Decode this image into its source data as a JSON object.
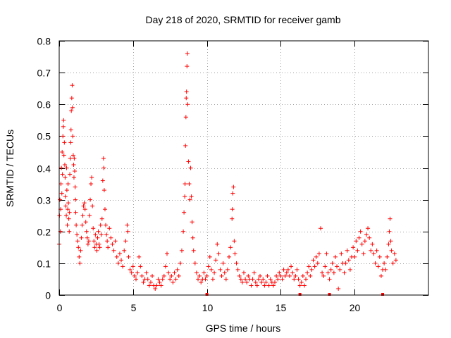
{
  "chart_data": {
    "type": "scatter",
    "title": "Day 218 of 2020, SRMTID for receiver gamb",
    "xlabel": "GPS time / hours",
    "ylabel": "SRMTID / TECUs",
    "xlim": [
      0,
      25
    ],
    "ylim": [
      0,
      0.8
    ],
    "xticks": [
      0,
      5,
      10,
      15,
      20
    ],
    "xtick_labels": [
      "0",
      "5",
      "10",
      "15",
      "20"
    ],
    "yticks": [
      0,
      0.1,
      0.2,
      0.3,
      0.4,
      0.5,
      0.6,
      0.7,
      0.8
    ],
    "ytick_labels": [
      "0",
      "0.1",
      "0.2",
      "0.3",
      "0.4",
      "0.5",
      "0.6",
      "0.7",
      "0.8"
    ],
    "grid": true,
    "marker": "+",
    "color": "#ff0000",
    "series": [
      {
        "name": "SRMTID",
        "points": [
          [
            0.0,
            0.16
          ],
          [
            0.02,
            0.25
          ],
          [
            0.05,
            0.3
          ],
          [
            0.08,
            0.2
          ],
          [
            0.1,
            0.27
          ],
          [
            0.12,
            0.35
          ],
          [
            0.15,
            0.4
          ],
          [
            0.18,
            0.32
          ],
          [
            0.2,
            0.45
          ],
          [
            0.22,
            0.38
          ],
          [
            0.25,
            0.5
          ],
          [
            0.28,
            0.53
          ],
          [
            0.3,
            0.55
          ],
          [
            0.32,
            0.44
          ],
          [
            0.35,
            0.48
          ],
          [
            0.38,
            0.41
          ],
          [
            0.4,
            0.37
          ],
          [
            0.42,
            0.31
          ],
          [
            0.45,
            0.28
          ],
          [
            0.48,
            0.25
          ],
          [
            0.5,
            0.4
          ],
          [
            0.52,
            0.33
          ],
          [
            0.55,
            0.22
          ],
          [
            0.58,
            0.27
          ],
          [
            0.6,
            0.35
          ],
          [
            0.62,
            0.29
          ],
          [
            0.65,
            0.24
          ],
          [
            0.68,
            0.2
          ],
          [
            0.7,
            0.26
          ],
          [
            0.72,
            0.38
          ],
          [
            0.75,
            0.43
          ],
          [
            0.78,
            0.48
          ],
          [
            0.8,
            0.52
          ],
          [
            0.82,
            0.58
          ],
          [
            0.85,
            0.62
          ],
          [
            0.88,
            0.66
          ],
          [
            0.9,
            0.59
          ],
          [
            0.92,
            0.5
          ],
          [
            0.95,
            0.44
          ],
          [
            0.98,
            0.41
          ],
          [
            1.0,
            0.37
          ],
          [
            1.02,
            0.43
          ],
          [
            1.05,
            0.39
          ],
          [
            1.08,
            0.34
          ],
          [
            1.1,
            0.3
          ],
          [
            1.12,
            0.26
          ],
          [
            1.15,
            0.22
          ],
          [
            1.2,
            0.19
          ],
          [
            1.25,
            0.17
          ],
          [
            1.3,
            0.15
          ],
          [
            1.35,
            0.12
          ],
          [
            1.4,
            0.1
          ],
          [
            1.45,
            0.14
          ],
          [
            1.5,
            0.18
          ],
          [
            1.55,
            0.22
          ],
          [
            1.6,
            0.25
          ],
          [
            1.65,
            0.28
          ],
          [
            1.7,
            0.29
          ],
          [
            1.75,
            0.27
          ],
          [
            1.8,
            0.23
          ],
          [
            1.85,
            0.2
          ],
          [
            1.9,
            0.18
          ],
          [
            1.95,
            0.16
          ],
          [
            2.0,
            0.17
          ],
          [
            2.05,
            0.25
          ],
          [
            2.1,
            0.3
          ],
          [
            2.15,
            0.35
          ],
          [
            2.2,
            0.37
          ],
          [
            2.25,
            0.28
          ],
          [
            2.3,
            0.21
          ],
          [
            2.35,
            0.17
          ],
          [
            2.4,
            0.15
          ],
          [
            2.45,
            0.19
          ],
          [
            2.5,
            0.16
          ],
          [
            2.55,
            0.14
          ],
          [
            2.6,
            0.18
          ],
          [
            2.65,
            0.2
          ],
          [
            2.7,
            0.16
          ],
          [
            2.75,
            0.15
          ],
          [
            2.8,
            0.22
          ],
          [
            2.85,
            0.19
          ],
          [
            2.9,
            0.24
          ],
          [
            2.95,
            0.36
          ],
          [
            3.0,
            0.43
          ],
          [
            3.02,
            0.4
          ],
          [
            3.05,
            0.33
          ],
          [
            3.1,
            0.27
          ],
          [
            3.15,
            0.22
          ],
          [
            3.2,
            0.19
          ],
          [
            3.25,
            0.17
          ],
          [
            3.3,
            0.15
          ],
          [
            3.4,
            0.21
          ],
          [
            3.5,
            0.18
          ],
          [
            3.6,
            0.16
          ],
          [
            3.7,
            0.14
          ],
          [
            3.8,
            0.17
          ],
          [
            3.9,
            0.12
          ],
          [
            4.0,
            0.1
          ],
          [
            4.1,
            0.13
          ],
          [
            4.2,
            0.11
          ],
          [
            4.3,
            0.09
          ],
          [
            4.4,
            0.14
          ],
          [
            4.5,
            0.17
          ],
          [
            4.6,
            0.22
          ],
          [
            4.65,
            0.2
          ],
          [
            4.7,
            0.12
          ],
          [
            4.8,
            0.08
          ],
          [
            4.9,
            0.07
          ],
          [
            5.0,
            0.09
          ],
          [
            5.1,
            0.06
          ],
          [
            5.2,
            0.05
          ],
          [
            5.3,
            0.07
          ],
          [
            5.4,
            0.12
          ],
          [
            5.5,
            0.09
          ],
          [
            5.6,
            0.06
          ],
          [
            5.7,
            0.04
          ],
          [
            5.8,
            0.05
          ],
          [
            5.9,
            0.07
          ],
          [
            6.0,
            0.05
          ],
          [
            6.1,
            0.03
          ],
          [
            6.2,
            0.04
          ],
          [
            6.3,
            0.06
          ],
          [
            6.4,
            0.03
          ],
          [
            6.5,
            0.02
          ],
          [
            6.6,
            0.03
          ],
          [
            6.7,
            0.05
          ],
          [
            6.8,
            0.04
          ],
          [
            6.9,
            0.03
          ],
          [
            7.0,
            0.05
          ],
          [
            7.1,
            0.06
          ],
          [
            7.2,
            0.09
          ],
          [
            7.3,
            0.13
          ],
          [
            7.4,
            0.07
          ],
          [
            7.5,
            0.05
          ],
          [
            7.6,
            0.06
          ],
          [
            7.7,
            0.04
          ],
          [
            7.8,
            0.07
          ],
          [
            7.9,
            0.05
          ],
          [
            8.0,
            0.08
          ],
          [
            8.1,
            0.06
          ],
          [
            8.2,
            0.1
          ],
          [
            8.3,
            0.14
          ],
          [
            8.4,
            0.2
          ],
          [
            8.45,
            0.26
          ],
          [
            8.5,
            0.31
          ],
          [
            8.52,
            0.35
          ],
          [
            8.55,
            0.47
          ],
          [
            8.58,
            0.56
          ],
          [
            8.6,
            0.62
          ],
          [
            8.62,
            0.64
          ],
          [
            8.65,
            0.72
          ],
          [
            8.68,
            0.76
          ],
          [
            8.7,
            0.6
          ],
          [
            8.75,
            0.42
          ],
          [
            8.8,
            0.35
          ],
          [
            8.85,
            0.3
          ],
          [
            8.9,
            0.4
          ],
          [
            8.95,
            0.31
          ],
          [
            9.0,
            0.23
          ],
          [
            9.05,
            0.18
          ],
          [
            9.1,
            0.14
          ],
          [
            9.2,
            0.1
          ],
          [
            9.3,
            0.07
          ],
          [
            9.4,
            0.05
          ],
          [
            9.5,
            0.06
          ],
          [
            9.6,
            0.04
          ],
          [
            9.7,
            0.05
          ],
          [
            9.8,
            0.07
          ],
          [
            9.9,
            0.05
          ],
          [
            10.0,
            0.06
          ],
          [
            10.1,
            0.09
          ],
          [
            10.2,
            0.12
          ],
          [
            10.3,
            0.08
          ],
          [
            10.4,
            0.05
          ],
          [
            10.5,
            0.07
          ],
          [
            10.6,
            0.11
          ],
          [
            10.7,
            0.16
          ],
          [
            10.8,
            0.13
          ],
          [
            10.9,
            0.08
          ],
          [
            11.0,
            0.06
          ],
          [
            11.1,
            0.1
          ],
          [
            11.2,
            0.07
          ],
          [
            11.3,
            0.05
          ],
          [
            11.4,
            0.08
          ],
          [
            11.5,
            0.12
          ],
          [
            11.6,
            0.15
          ],
          [
            11.7,
            0.24
          ],
          [
            11.72,
            0.27
          ],
          [
            11.75,
            0.32
          ],
          [
            11.8,
            0.34
          ],
          [
            11.85,
            0.17
          ],
          [
            11.9,
            0.13
          ],
          [
            12.0,
            0.1
          ],
          [
            12.1,
            0.08
          ],
          [
            12.2,
            0.06
          ],
          [
            12.3,
            0.05
          ],
          [
            12.4,
            0.04
          ],
          [
            12.5,
            0.07
          ],
          [
            12.6,
            0.05
          ],
          [
            12.7,
            0.04
          ],
          [
            12.8,
            0.06
          ],
          [
            12.9,
            0.05
          ],
          [
            13.0,
            0.03
          ],
          [
            13.1,
            0.05
          ],
          [
            13.2,
            0.07
          ],
          [
            13.3,
            0.04
          ],
          [
            13.4,
            0.03
          ],
          [
            13.5,
            0.05
          ],
          [
            13.6,
            0.06
          ],
          [
            13.7,
            0.04
          ],
          [
            13.8,
            0.05
          ],
          [
            13.9,
            0.03
          ],
          [
            14.0,
            0.04
          ],
          [
            14.1,
            0.06
          ],
          [
            14.2,
            0.03
          ],
          [
            14.3,
            0.05
          ],
          [
            14.4,
            0.04
          ],
          [
            14.5,
            0.03
          ],
          [
            14.6,
            0.04
          ],
          [
            14.7,
            0.06
          ],
          [
            14.8,
            0.05
          ],
          [
            14.9,
            0.07
          ],
          [
            15.0,
            0.06
          ],
          [
            15.1,
            0.05
          ],
          [
            15.2,
            0.08
          ],
          [
            15.3,
            0.06
          ],
          [
            15.4,
            0.07
          ],
          [
            15.5,
            0.08
          ],
          [
            15.6,
            0.06
          ],
          [
            15.7,
            0.09
          ],
          [
            15.8,
            0.07
          ],
          [
            15.9,
            0.05
          ],
          [
            16.0,
            0.06
          ],
          [
            16.1,
            0.08
          ],
          [
            16.2,
            0.05
          ],
          [
            16.3,
            0.03
          ],
          [
            16.4,
            0.04
          ],
          [
            16.5,
            0.06
          ],
          [
            16.6,
            0.03
          ],
          [
            16.7,
            0.05
          ],
          [
            16.8,
            0.07
          ],
          [
            16.9,
            0.09
          ],
          [
            17.0,
            0.06
          ],
          [
            17.1,
            0.08
          ],
          [
            17.2,
            0.11
          ],
          [
            17.3,
            0.09
          ],
          [
            17.4,
            0.12
          ],
          [
            17.5,
            0.1
          ],
          [
            17.6,
            0.13
          ],
          [
            17.7,
            0.21
          ],
          [
            17.8,
            0.07
          ],
          [
            17.9,
            0.06
          ],
          [
            18.0,
            0.09
          ],
          [
            18.1,
            0.13
          ],
          [
            18.2,
            0.07
          ],
          [
            18.3,
            0.05
          ],
          [
            18.4,
            0.08
          ],
          [
            18.5,
            0.1
          ],
          [
            18.6,
            0.07
          ],
          [
            18.7,
            0.12
          ],
          [
            18.8,
            0.09
          ],
          [
            18.9,
            0.02
          ],
          [
            19.0,
            0.08
          ],
          [
            19.1,
            0.13
          ],
          [
            19.2,
            0.1
          ],
          [
            19.3,
            0.07
          ],
          [
            19.4,
            0.1
          ],
          [
            19.5,
            0.14
          ],
          [
            19.6,
            0.11
          ],
          [
            19.7,
            0.08
          ],
          [
            19.8,
            0.12
          ],
          [
            19.9,
            0.15
          ],
          [
            20.0,
            0.12
          ],
          [
            20.1,
            0.17
          ],
          [
            20.2,
            0.14
          ],
          [
            20.3,
            0.18
          ],
          [
            20.4,
            0.2
          ],
          [
            20.5,
            0.16
          ],
          [
            20.6,
            0.13
          ],
          [
            20.7,
            0.17
          ],
          [
            20.8,
            0.19
          ],
          [
            20.9,
            0.21
          ],
          [
            21.0,
            0.18
          ],
          [
            21.1,
            0.14
          ],
          [
            21.2,
            0.16
          ],
          [
            21.3,
            0.13
          ],
          [
            21.4,
            0.1
          ],
          [
            21.5,
            0.14
          ],
          [
            21.6,
            0.09
          ],
          [
            21.7,
            0.12
          ],
          [
            21.8,
            0.06
          ],
          [
            21.9,
            0.08
          ],
          [
            22.0,
            0.1
          ],
          [
            22.1,
            0.08
          ],
          [
            22.2,
            0.12
          ],
          [
            22.3,
            0.16
          ],
          [
            22.35,
            0.2
          ],
          [
            22.4,
            0.24
          ],
          [
            22.45,
            0.17
          ],
          [
            22.5,
            0.14
          ],
          [
            22.6,
            0.1
          ],
          [
            22.7,
            0.13
          ],
          [
            22.8,
            0.11
          ]
        ],
        "zero_markers": [
          10.0,
          16.3,
          18.3,
          21.9
        ]
      }
    ]
  }
}
